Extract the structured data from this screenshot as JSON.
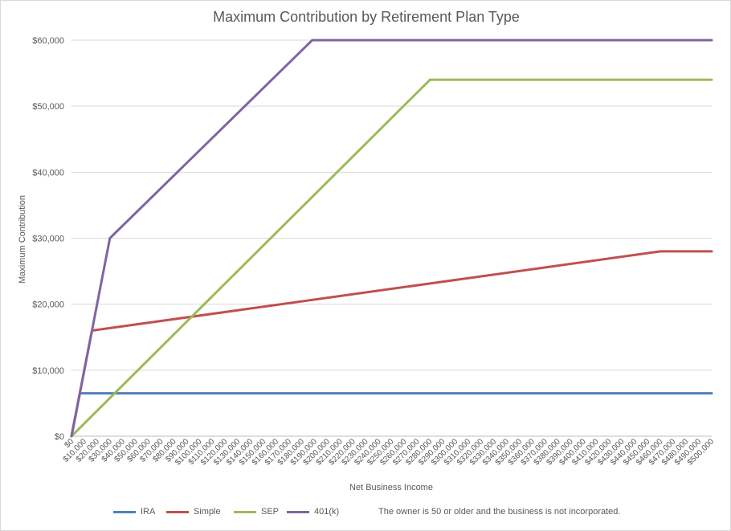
{
  "chart_data": {
    "type": "line",
    "title": "Maximum Contribution by Retirement Plan Type",
    "xlabel": "Net Business Income",
    "ylabel": "Maximum Contribution",
    "xlim": [
      0,
      500000
    ],
    "ylim": [
      0,
      60000
    ],
    "x_ticks": [
      0,
      10000,
      20000,
      30000,
      40000,
      50000,
      60000,
      70000,
      80000,
      90000,
      100000,
      110000,
      120000,
      130000,
      140000,
      150000,
      160000,
      170000,
      180000,
      190000,
      200000,
      210000,
      220000,
      230000,
      240000,
      250000,
      260000,
      270000,
      280000,
      290000,
      300000,
      310000,
      320000,
      330000,
      340000,
      350000,
      360000,
      370000,
      380000,
      390000,
      400000,
      410000,
      420000,
      430000,
      440000,
      450000,
      460000,
      470000,
      480000,
      490000,
      500000
    ],
    "y_ticks": [
      0,
      10000,
      20000,
      30000,
      40000,
      50000,
      60000
    ],
    "x_tick_labels": [
      "$0",
      "$10,000",
      "$20,000",
      "$30,000",
      "$40,000",
      "$50,000",
      "$60,000",
      "$70,000",
      "$80,000",
      "$90,000",
      "$100,000",
      "$110,000",
      "$120,000",
      "$130,000",
      "$140,000",
      "$150,000",
      "$160,000",
      "$170,000",
      "$180,000",
      "$190,000",
      "$200,000",
      "$210,000",
      "$220,000",
      "$230,000",
      "$240,000",
      "$250,000",
      "$260,000",
      "$270,000",
      "$280,000",
      "$290,000",
      "$300,000",
      "$310,000",
      "$320,000",
      "$330,000",
      "$340,000",
      "$350,000",
      "$360,000",
      "$370,000",
      "$380,000",
      "$390,000",
      "$400,000",
      "$410,000",
      "$420,000",
      "$430,000",
      "$440,000",
      "$450,000",
      "$460,000",
      "$470,000",
      "$480,000",
      "$490,000",
      "$500,000"
    ],
    "y_tick_labels": [
      "$0",
      "$10,000",
      "$20,000",
      "$30,000",
      "$40,000",
      "$50,000",
      "$60,000"
    ],
    "grid": true,
    "legend": "bottom",
    "series": [
      {
        "name": "IRA",
        "color": "#4f81bd",
        "points": [
          [
            0,
            0
          ],
          [
            6500,
            6500
          ],
          [
            500000,
            6500
          ]
        ]
      },
      {
        "name": "Simple",
        "color": "#c0504d",
        "points": [
          [
            0,
            0
          ],
          [
            16000,
            16000
          ],
          [
            460000,
            28000
          ],
          [
            500000,
            28000
          ]
        ]
      },
      {
        "name": "SEP",
        "color": "#9bbb59",
        "points": [
          [
            0,
            0
          ],
          [
            280000,
            54000
          ],
          [
            500000,
            54000
          ]
        ]
      },
      {
        "name": "401(k)",
        "color": "#8064a2",
        "points": [
          [
            0,
            0
          ],
          [
            30000,
            30000
          ],
          [
            188000,
            60000
          ],
          [
            500000,
            60000
          ]
        ]
      }
    ],
    "note": "The owner is 50 or older and the business is not incorporated."
  }
}
